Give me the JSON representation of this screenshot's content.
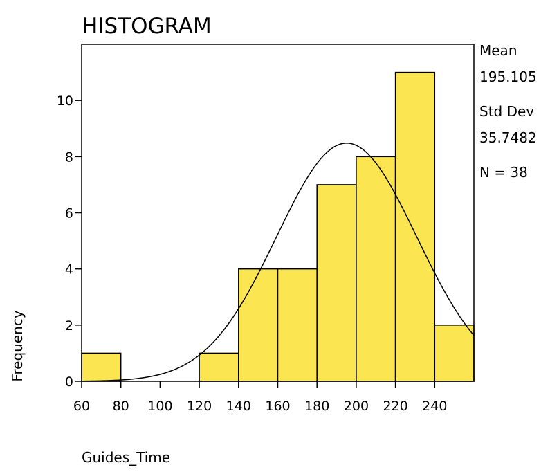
{
  "chart_data": {
    "type": "bar",
    "title": "HISTOGRAM",
    "xlabel": "Guides_Time",
    "ylabel": "Frequency",
    "bins": [
      {
        "start": 60,
        "end": 80,
        "count": 1
      },
      {
        "start": 80,
        "end": 100,
        "count": 0
      },
      {
        "start": 100,
        "end": 120,
        "count": 0
      },
      {
        "start": 120,
        "end": 140,
        "count": 1
      },
      {
        "start": 140,
        "end": 160,
        "count": 4
      },
      {
        "start": 160,
        "end": 180,
        "count": 4
      },
      {
        "start": 180,
        "end": 200,
        "count": 7
      },
      {
        "start": 200,
        "end": 220,
        "count": 8
      },
      {
        "start": 220,
        "end": 240,
        "count": 11
      },
      {
        "start": 240,
        "end": 260,
        "count": 2
      }
    ],
    "xlim": [
      60,
      260
    ],
    "ylim": [
      0,
      12
    ],
    "x_ticks": [
      60,
      80,
      100,
      120,
      140,
      160,
      180,
      200,
      220,
      240
    ],
    "y_ticks": [
      0,
      2,
      4,
      6,
      8,
      10
    ],
    "normal_curve": {
      "mean": 195.105,
      "std": 35.7482,
      "n": 38,
      "bin_width": 20
    },
    "stats": {
      "mean_label": "Mean",
      "mean_value": "195.105",
      "std_label": "Std Dev",
      "std_value": "35.7482",
      "n_text": "N = 38"
    },
    "colors": {
      "bar_fill": "#FBE651",
      "bar_stroke": "#000000",
      "curve": "#000000"
    }
  }
}
